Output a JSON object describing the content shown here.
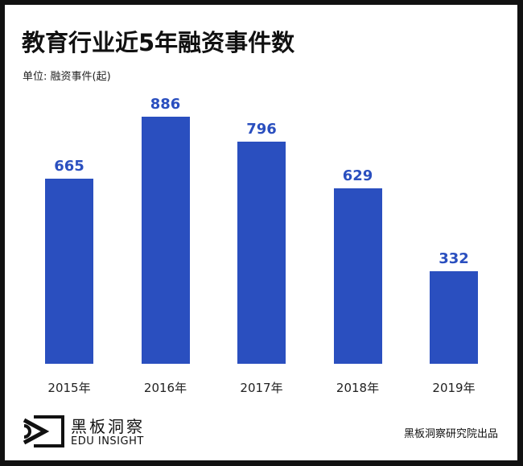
{
  "chart_data": {
    "type": "bar",
    "title": "教育行业近5年融资事件数",
    "unit_label": "单位: 融资事件(起)",
    "categories": [
      "2015年",
      "2016年",
      "2017年",
      "2018年",
      "2019年"
    ],
    "values": [
      665,
      886,
      796,
      629,
      332
    ],
    "bar_color": "#2a4fbf",
    "grid": false
  },
  "footer": {
    "brand_cn": "黑板洞察",
    "brand_en": "EDU INSIGHT",
    "credit": "黑板洞察研究院出品"
  }
}
